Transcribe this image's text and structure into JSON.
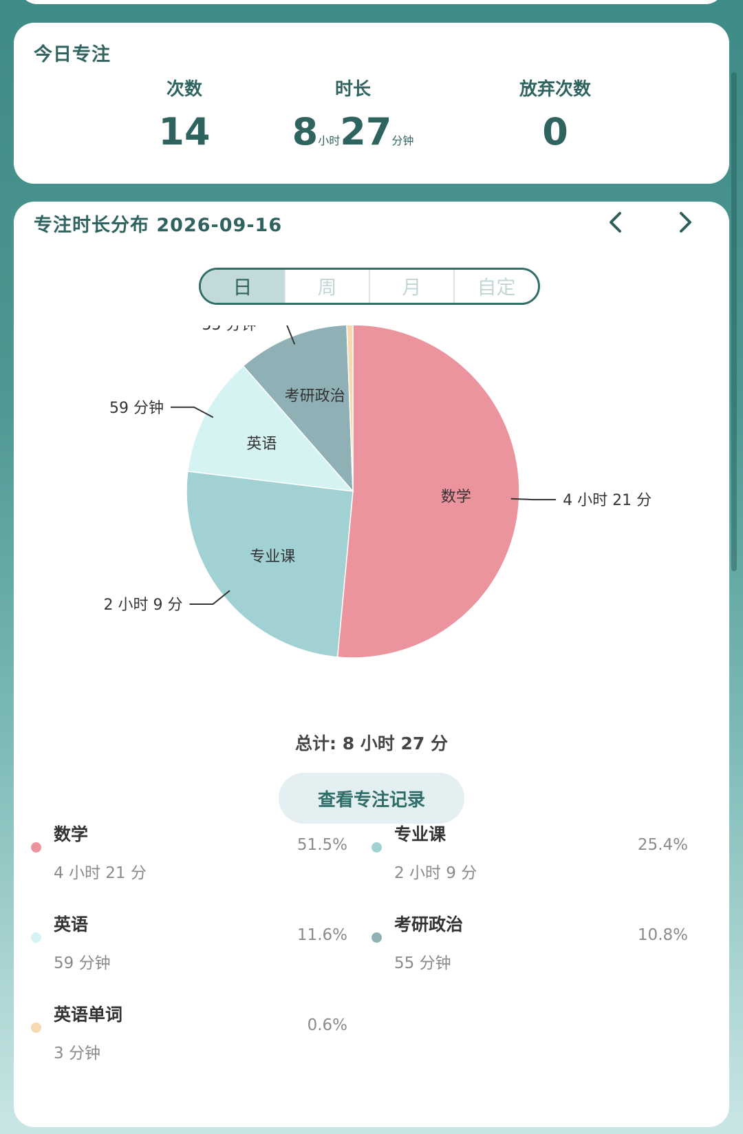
{
  "today": {
    "title": "今日专注",
    "stats": [
      {
        "label": "次数",
        "value": "14"
      },
      {
        "label": "时长",
        "hours": "8",
        "hours_unit": "小时",
        "minutes": "27",
        "minutes_unit": "分钟"
      },
      {
        "label": "放弃次数",
        "value": "0"
      }
    ]
  },
  "distribution": {
    "title": "专注时长分布 2026-09-16",
    "prev_icon": "chevron-left-icon",
    "next_icon": "chevron-right-icon",
    "periods": [
      "日",
      "周",
      "月",
      "自定"
    ],
    "selected_period": "日",
    "total": "总计: 8 小时 27 分",
    "record_button": "查看专注记录"
  },
  "chart_data": {
    "type": "pie",
    "slices": [
      {
        "name": "数学",
        "minutes": 261,
        "value_label": "4 小时 21 分",
        "percent": "51.5%",
        "color": "#ec949e"
      },
      {
        "name": "专业课",
        "minutes": 129,
        "value_label": "2 小时 9 分",
        "percent": "25.4%",
        "color": "#a1d1d2"
      },
      {
        "name": "英语",
        "minutes": 59,
        "value_label": "59 分钟",
        "percent": "11.6%",
        "color": "#d5f3f2"
      },
      {
        "name": "考研政治",
        "minutes": 55,
        "value_label": "55 分钟",
        "percent": "10.8%",
        "color": "#8fb1b6"
      },
      {
        "name": "英语单词",
        "minutes": 3,
        "value_label": "3 分钟",
        "percent": "0.6%",
        "color": "#f5d9b0"
      }
    ]
  }
}
